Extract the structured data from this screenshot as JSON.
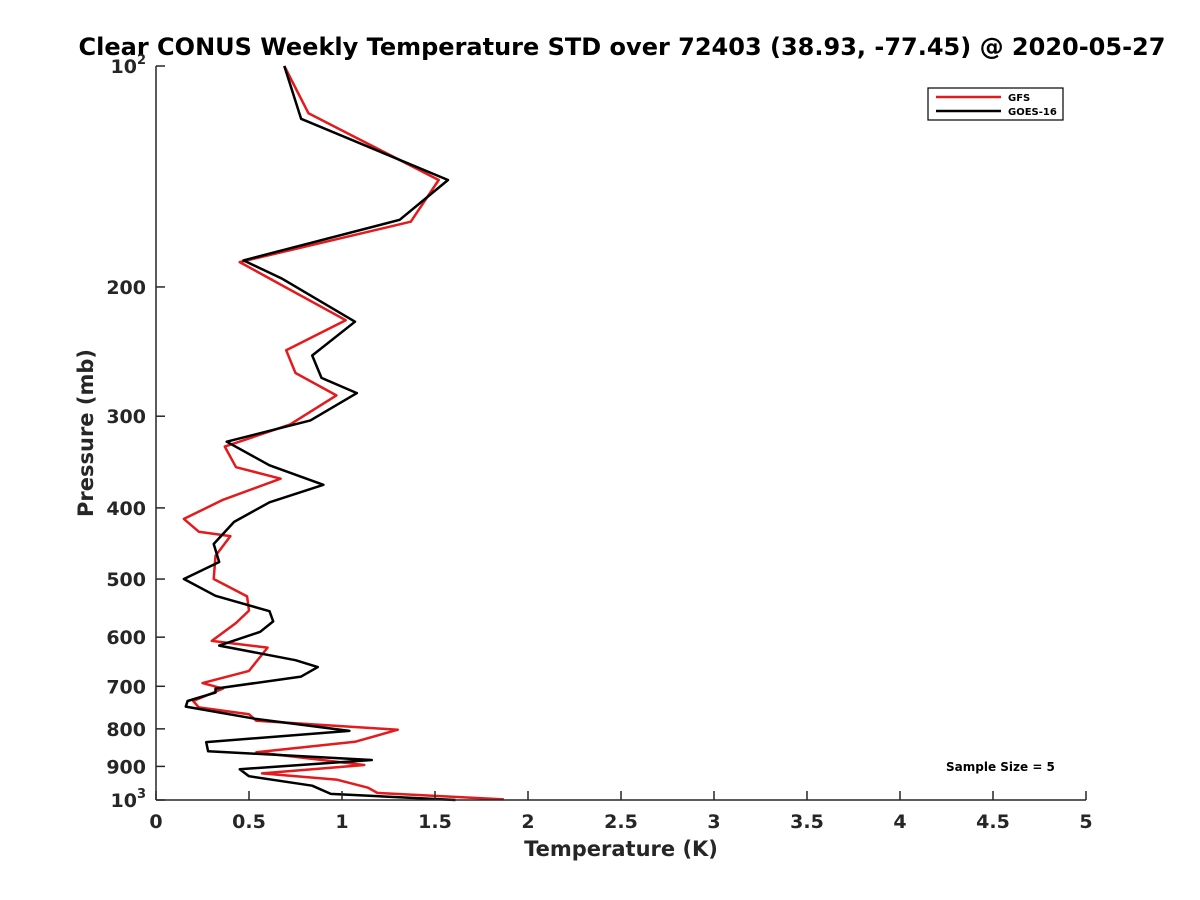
{
  "chart_data": {
    "type": "line",
    "title": "Clear CONUS Weekly Temperature STD over 72403 (38.93, -77.45) @ 2020-05-27",
    "xlabel": "Temperature (K)",
    "ylabel": "Pressure (mb)",
    "xlim": [
      0,
      5
    ],
    "ylim": [
      100,
      1000
    ],
    "y_scale": "log",
    "y_reversed": true,
    "x_ticks": [
      {
        "value": 0,
        "label": "0"
      },
      {
        "value": 0.5,
        "label": "0.5"
      },
      {
        "value": 1,
        "label": "1"
      },
      {
        "value": 1.5,
        "label": "1.5"
      },
      {
        "value": 2,
        "label": "2"
      },
      {
        "value": 2.5,
        "label": "2.5"
      },
      {
        "value": 3,
        "label": "3"
      },
      {
        "value": 3.5,
        "label": "3.5"
      },
      {
        "value": 4,
        "label": "4"
      },
      {
        "value": 4.5,
        "label": "4.5"
      },
      {
        "value": 5,
        "label": "5"
      }
    ],
    "y_ticks": [
      {
        "value": 100,
        "label": "10",
        "sup": "2"
      },
      {
        "value": 200,
        "label": "200"
      },
      {
        "value": 300,
        "label": "300"
      },
      {
        "value": 400,
        "label": "400"
      },
      {
        "value": 500,
        "label": "500"
      },
      {
        "value": 600,
        "label": "600"
      },
      {
        "value": 700,
        "label": "700"
      },
      {
        "value": 800,
        "label": "800"
      },
      {
        "value": 900,
        "label": "900"
      },
      {
        "value": 1000,
        "label": "10",
        "sup": "3"
      }
    ],
    "grid": false,
    "legend_position": "top-right",
    "annotation": "Sample Size = 5",
    "series": [
      {
        "name": "GFS",
        "color": "#e41a1c",
        "x": [
          0.69,
          0.82,
          1.52,
          1.37,
          0.45,
          0.63,
          1.02,
          0.7,
          0.75,
          0.97,
          0.72,
          0.37,
          0.43,
          0.67,
          0.36,
          0.15,
          0.23,
          0.4,
          0.32,
          0.31,
          0.49,
          0.5,
          0.43,
          0.3,
          0.6,
          0.5,
          0.25,
          0.36,
          0.2,
          0.23,
          0.5,
          0.54,
          1.3,
          1.07,
          0.54,
          1.12,
          0.57,
          0.97,
          1.14,
          1.19,
          1.87
        ],
        "y": [
          100,
          116,
          143,
          163,
          185,
          196,
          222,
          244,
          262,
          281,
          308,
          330,
          352,
          365,
          390,
          414,
          431,
          437,
          465,
          500,
          528,
          552,
          574,
          607,
          620,
          667,
          693,
          705,
          733,
          748,
          764,
          780,
          802,
          833,
          861,
          896,
          920,
          938,
          962,
          978,
          998
        ]
      },
      {
        "name": "GOES-16",
        "color": "#000000",
        "x": [
          0.69,
          0.78,
          1.57,
          1.31,
          0.47,
          0.68,
          1.07,
          0.84,
          0.89,
          1.08,
          0.83,
          0.38,
          0.61,
          0.9,
          0.61,
          0.42,
          0.31,
          0.34,
          0.15,
          0.32,
          0.61,
          0.63,
          0.56,
          0.34,
          0.75,
          0.87,
          0.78,
          0.32,
          0.32,
          0.17,
          0.16,
          0.53,
          1.04,
          0.27,
          0.28,
          1.16,
          0.45,
          0.5,
          0.84,
          0.94,
          1.61
        ],
        "y": [
          100,
          118,
          143,
          162,
          184,
          195,
          223,
          248,
          266,
          279,
          304,
          325,
          350,
          372,
          393,
          418,
          448,
          474,
          500,
          527,
          553,
          571,
          590,
          616,
          645,
          659,
          679,
          705,
          714,
          733,
          746,
          775,
          805,
          834,
          858,
          882,
          908,
          928,
          956,
          981,
          1000
        ]
      }
    ]
  }
}
